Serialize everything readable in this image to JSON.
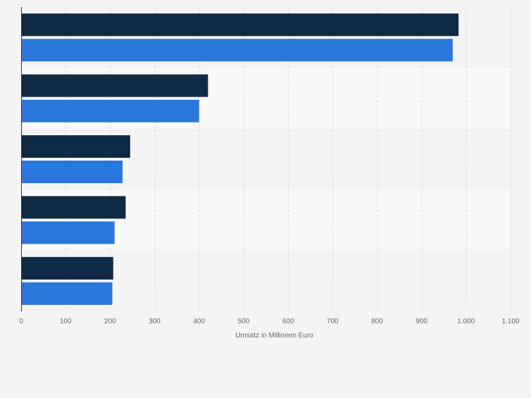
{
  "chart_data": {
    "type": "bar",
    "orientation": "horizontal",
    "categories": [
      "",
      "",
      "",
      "",
      ""
    ],
    "series": [
      {
        "color": "#0f2a44",
        "values": [
          983,
          420,
          245,
          235,
          207
        ]
      },
      {
        "color": "#2a77db",
        "values": [
          970,
          400,
          228,
          210,
          205
        ]
      }
    ],
    "xlabel": "Umsatz in Millionen Euro",
    "xlim": [
      0,
      1100
    ],
    "xticks": [
      0,
      100,
      200,
      300,
      400,
      500,
      600,
      700,
      800,
      900,
      1000,
      1100
    ],
    "xtick_labels": [
      "0",
      "100",
      "200",
      "300",
      "400",
      "500",
      "600",
      "700",
      "800",
      "900",
      "1.000",
      "1.100"
    ],
    "grid": "vertical dashed",
    "legend": "none"
  }
}
